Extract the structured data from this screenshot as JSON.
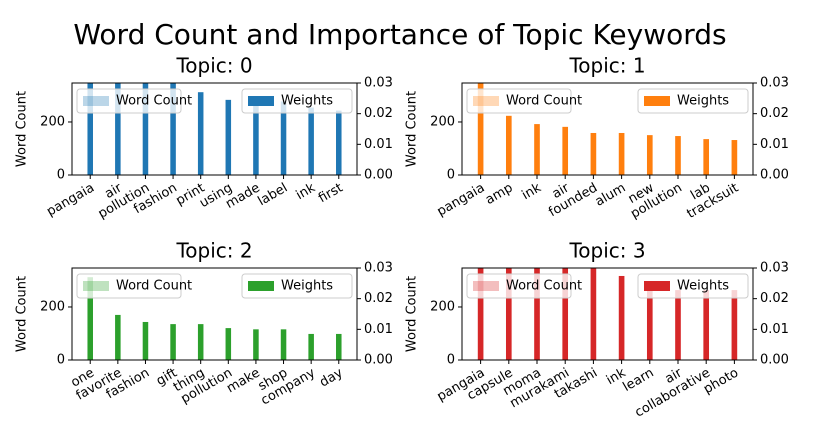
{
  "title": "Word Count and Importance of Topic Keywords",
  "chart_data": [
    {
      "type": "bar",
      "title": "Topic: 0",
      "ylabel": "Word Count",
      "categories": [
        "pangaia",
        "air",
        "pollution",
        "fashion",
        "print",
        "using",
        "made",
        "label",
        "ink",
        "first"
      ],
      "series": [
        {
          "name": "Word Count",
          "color": "#1f77b4",
          "alpha": 0.3
        },
        {
          "name": "Weights",
          "color": "#1f77b4",
          "axis": "y2",
          "values": [
            0.032,
            0.032,
            0.032,
            0.032,
            0.027,
            0.0245,
            0.0235,
            0.024,
            0.022,
            0.021
          ]
        }
      ],
      "ylim": [
        0,
        347
      ],
      "yticks": [
        0,
        200
      ],
      "y2lim": [
        0,
        0.03
      ],
      "y2ticks": [
        {
          "value": 0,
          "label": "0.00"
        },
        {
          "value": 0.01,
          "label": "0.01"
        },
        {
          "value": 0.02,
          "label": "0.02"
        },
        {
          "value": 0.03,
          "label": "0.03"
        }
      ]
    },
    {
      "type": "bar",
      "title": "Topic: 1",
      "ylabel": "Word Count",
      "categories": [
        "pangaia",
        "amp",
        "ink",
        "air",
        "founded",
        "alum",
        "new",
        "pollution",
        "lab",
        "tracksuit"
      ],
      "series": [
        {
          "name": "Word Count",
          "color": "#ff7f0e",
          "alpha": 0.3
        },
        {
          "name": "Weights",
          "color": "#ff7f0e",
          "axis": "y2",
          "values": [
            0.032,
            0.0193,
            0.0166,
            0.0157,
            0.0137,
            0.0137,
            0.013,
            0.0127,
            0.0117,
            0.0114
          ]
        }
      ],
      "ylim": [
        0,
        347
      ],
      "yticks": [
        0,
        200
      ],
      "y2lim": [
        0,
        0.03
      ],
      "y2ticks": [
        {
          "value": 0,
          "label": "0.00"
        },
        {
          "value": 0.01,
          "label": "0.01"
        },
        {
          "value": 0.02,
          "label": "0.02"
        },
        {
          "value": 0.03,
          "label": "0.03"
        }
      ]
    },
    {
      "type": "bar",
      "title": "Topic: 2",
      "ylabel": "Word Count",
      "categories": [
        "one",
        "favorite",
        "fashion",
        "gift",
        "thing",
        "pollution",
        "make",
        "shop",
        "company",
        "day"
      ],
      "series": [
        {
          "name": "Word Count",
          "color": "#2ca02c",
          "alpha": 0.3
        },
        {
          "name": "Weights",
          "color": "#2ca02c",
          "axis": "y2",
          "values": [
            0.027,
            0.0147,
            0.0124,
            0.0117,
            0.0117,
            0.0104,
            0.01,
            0.01,
            0.0085,
            0.0085
          ]
        }
      ],
      "ylim": [
        0,
        347
      ],
      "yticks": [
        0,
        200
      ],
      "y2lim": [
        0,
        0.03
      ],
      "y2ticks": [
        {
          "value": 0,
          "label": "0.00"
        },
        {
          "value": 0.01,
          "label": "0.01"
        },
        {
          "value": 0.02,
          "label": "0.02"
        },
        {
          "value": 0.03,
          "label": "0.03"
        }
      ]
    },
    {
      "type": "bar",
      "title": "Topic: 3",
      "ylabel": "Word Count",
      "categories": [
        "pangaia",
        "capsule",
        "moma",
        "murakami",
        "takashi",
        "ink",
        "learn",
        "air",
        "collaborative",
        "photo"
      ],
      "series": [
        {
          "name": "Word Count",
          "color": "#d62728",
          "alpha": 0.3
        },
        {
          "name": "Weights",
          "color": "#d62728",
          "axis": "y2",
          "values": [
            0.032,
            0.032,
            0.032,
            0.032,
            0.032,
            0.0274,
            0.0228,
            0.0228,
            0.0228,
            0.0228
          ]
        }
      ],
      "ylim": [
        0,
        347
      ],
      "yticks": [
        0,
        200
      ],
      "y2lim": [
        0,
        0.03
      ],
      "y2ticks": [
        {
          "value": 0,
          "label": "0.00"
        },
        {
          "value": 0.01,
          "label": "0.01"
        },
        {
          "value": 0.02,
          "label": "0.02"
        },
        {
          "value": 0.03,
          "label": "0.03"
        }
      ]
    }
  ]
}
